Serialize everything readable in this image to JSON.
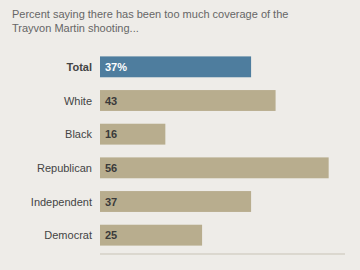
{
  "chart_data": {
    "type": "bar",
    "orientation": "horizontal",
    "title": "Percent saying there has been too much coverage of the\nTrayvon Martin shooting...",
    "categories": [
      "Total",
      "White",
      "Black",
      "Republican",
      "Independent",
      "Democrat"
    ],
    "values": [
      37,
      43,
      16,
      56,
      37,
      25
    ],
    "value_labels": [
      "37%",
      "43",
      "16",
      "56",
      "37",
      "25"
    ],
    "colors": [
      "#4e7d9e",
      "#b8ad8e",
      "#b8ad8e",
      "#b8ad8e",
      "#b8ad8e",
      "#b8ad8e"
    ],
    "xlim": [
      0,
      60
    ],
    "grid": false,
    "tick_labels": false,
    "data_labels": true
  }
}
